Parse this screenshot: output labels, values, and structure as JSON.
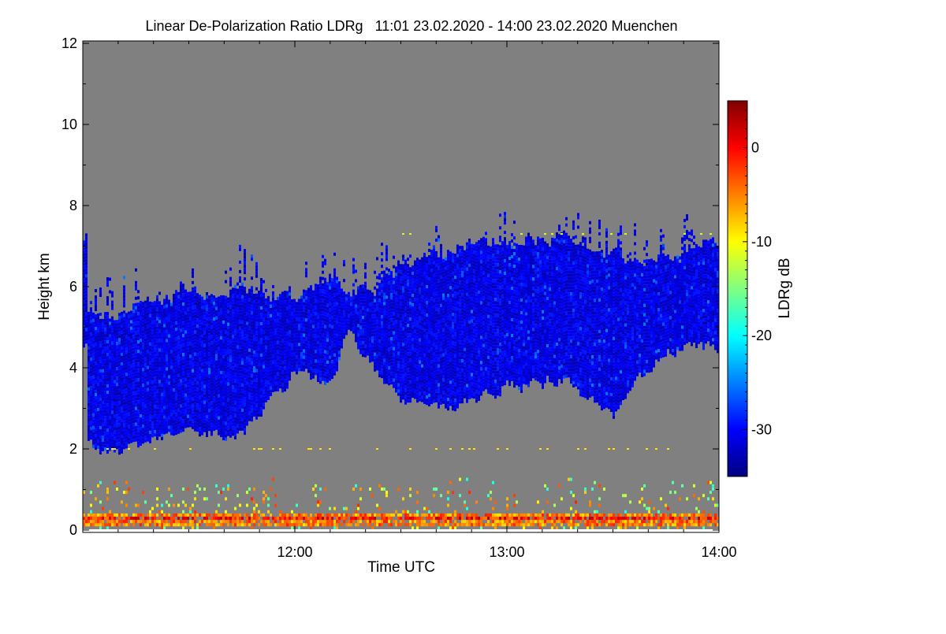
{
  "chart_data": {
    "type": "heatmap",
    "title": "Linear De-Polarization Ratio LDRg   11:01 23.02.2020 - 14:00 23.02.2020 Muenchen",
    "xlabel": "Time UTC",
    "ylabel": "Height km",
    "colorbar_label": "LDRg dB",
    "x_range_minutes_utc": [
      661,
      840
    ],
    "x_ticks": [
      {
        "minutes": 720,
        "label": "12:00"
      },
      {
        "minutes": 780,
        "label": "13:00"
      },
      {
        "minutes": 840,
        "label": "14:00"
      }
    ],
    "x_minor_tick_step_minutes": 10,
    "ylim": [
      0,
      12
    ],
    "y_ticks": [
      0,
      2,
      4,
      6,
      8,
      10,
      12
    ],
    "colorbar_range": [
      -35,
      5
    ],
    "colorbar_ticks": [
      0,
      -10,
      -20,
      -30
    ],
    "colormap": "jet",
    "background_no_signal_color": "#808080",
    "cloud_layer": {
      "typical_ldr_db": -31,
      "times_utc": [
        "11:01",
        "11:15",
        "11:30",
        "11:45",
        "12:00",
        "12:10",
        "12:15",
        "12:30",
        "12:45",
        "13:00",
        "13:15",
        "13:30",
        "13:45",
        "14:00"
      ],
      "base_km": [
        2.1,
        2.0,
        2.5,
        2.3,
        3.9,
        3.6,
        4.9,
        3.2,
        3.0,
        3.6,
        3.8,
        2.8,
        4.5,
        4.5
      ],
      "top_km": [
        5.3,
        5.5,
        5.9,
        5.9,
        5.7,
        6.3,
        5.7,
        6.5,
        7.0,
        7.2,
        7.2,
        6.7,
        6.7,
        7.2
      ]
    },
    "boundary_layer": {
      "top_km": 1.3,
      "dense_band_km": [
        0.1,
        0.45
      ],
      "typical_ldr_db": -5
    }
  }
}
